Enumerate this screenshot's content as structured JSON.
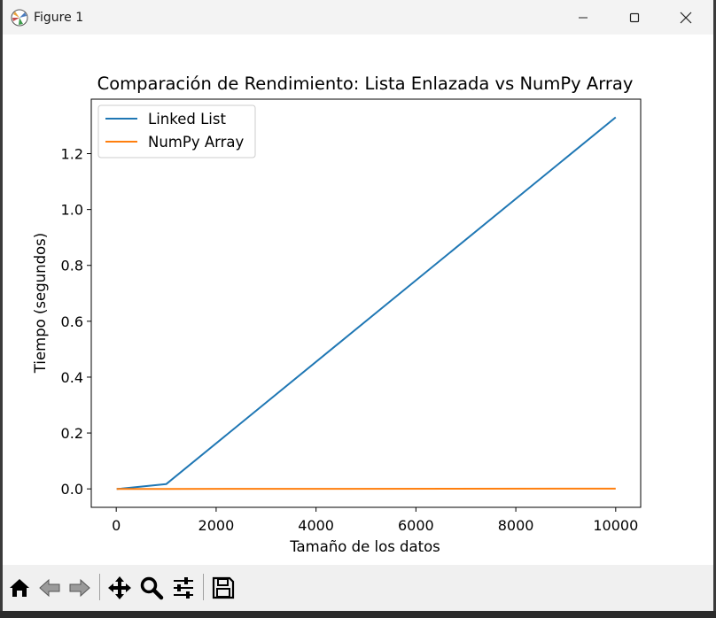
{
  "window": {
    "title": "Figure 1"
  },
  "colors": {
    "series1": "#1f77b4",
    "series2": "#ff7f0e"
  },
  "toolbar": {
    "buttons": [
      "home-icon",
      "back-arrow-icon",
      "forward-arrow-icon",
      "pan-icon",
      "zoom-icon",
      "configure-subplots-icon",
      "save-icon"
    ]
  },
  "chart_data": {
    "type": "line",
    "title": "Comparación de Rendimiento: Lista Enlazada vs NumPy Array",
    "xlabel": "Tamaño de los datos",
    "ylabel": "Tiempo (segundos)",
    "xlim": [
      -500,
      10500
    ],
    "ylim": [
      -0.066,
      1.395
    ],
    "xticks": [
      0,
      2000,
      4000,
      6000,
      8000,
      10000
    ],
    "yticks": [
      0.0,
      0.2,
      0.4,
      0.6,
      0.8,
      1.0,
      1.2
    ],
    "xtick_labels": [
      "0",
      "2000",
      "4000",
      "6000",
      "8000",
      "10000"
    ],
    "ytick_labels": [
      "0.0",
      "0.2",
      "0.4",
      "0.6",
      "0.8",
      "1.0",
      "1.2"
    ],
    "legend_position": "upper-left",
    "grid": false,
    "series": [
      {
        "name": "Linked List",
        "x": [
          10,
          100,
          1000,
          10000
        ],
        "y": [
          0.0,
          0.001,
          0.017,
          1.33
        ]
      },
      {
        "name": "NumPy Array",
        "x": [
          10,
          100,
          1000,
          10000
        ],
        "y": [
          0.0,
          0.0,
          0.0,
          0.001
        ]
      }
    ]
  }
}
